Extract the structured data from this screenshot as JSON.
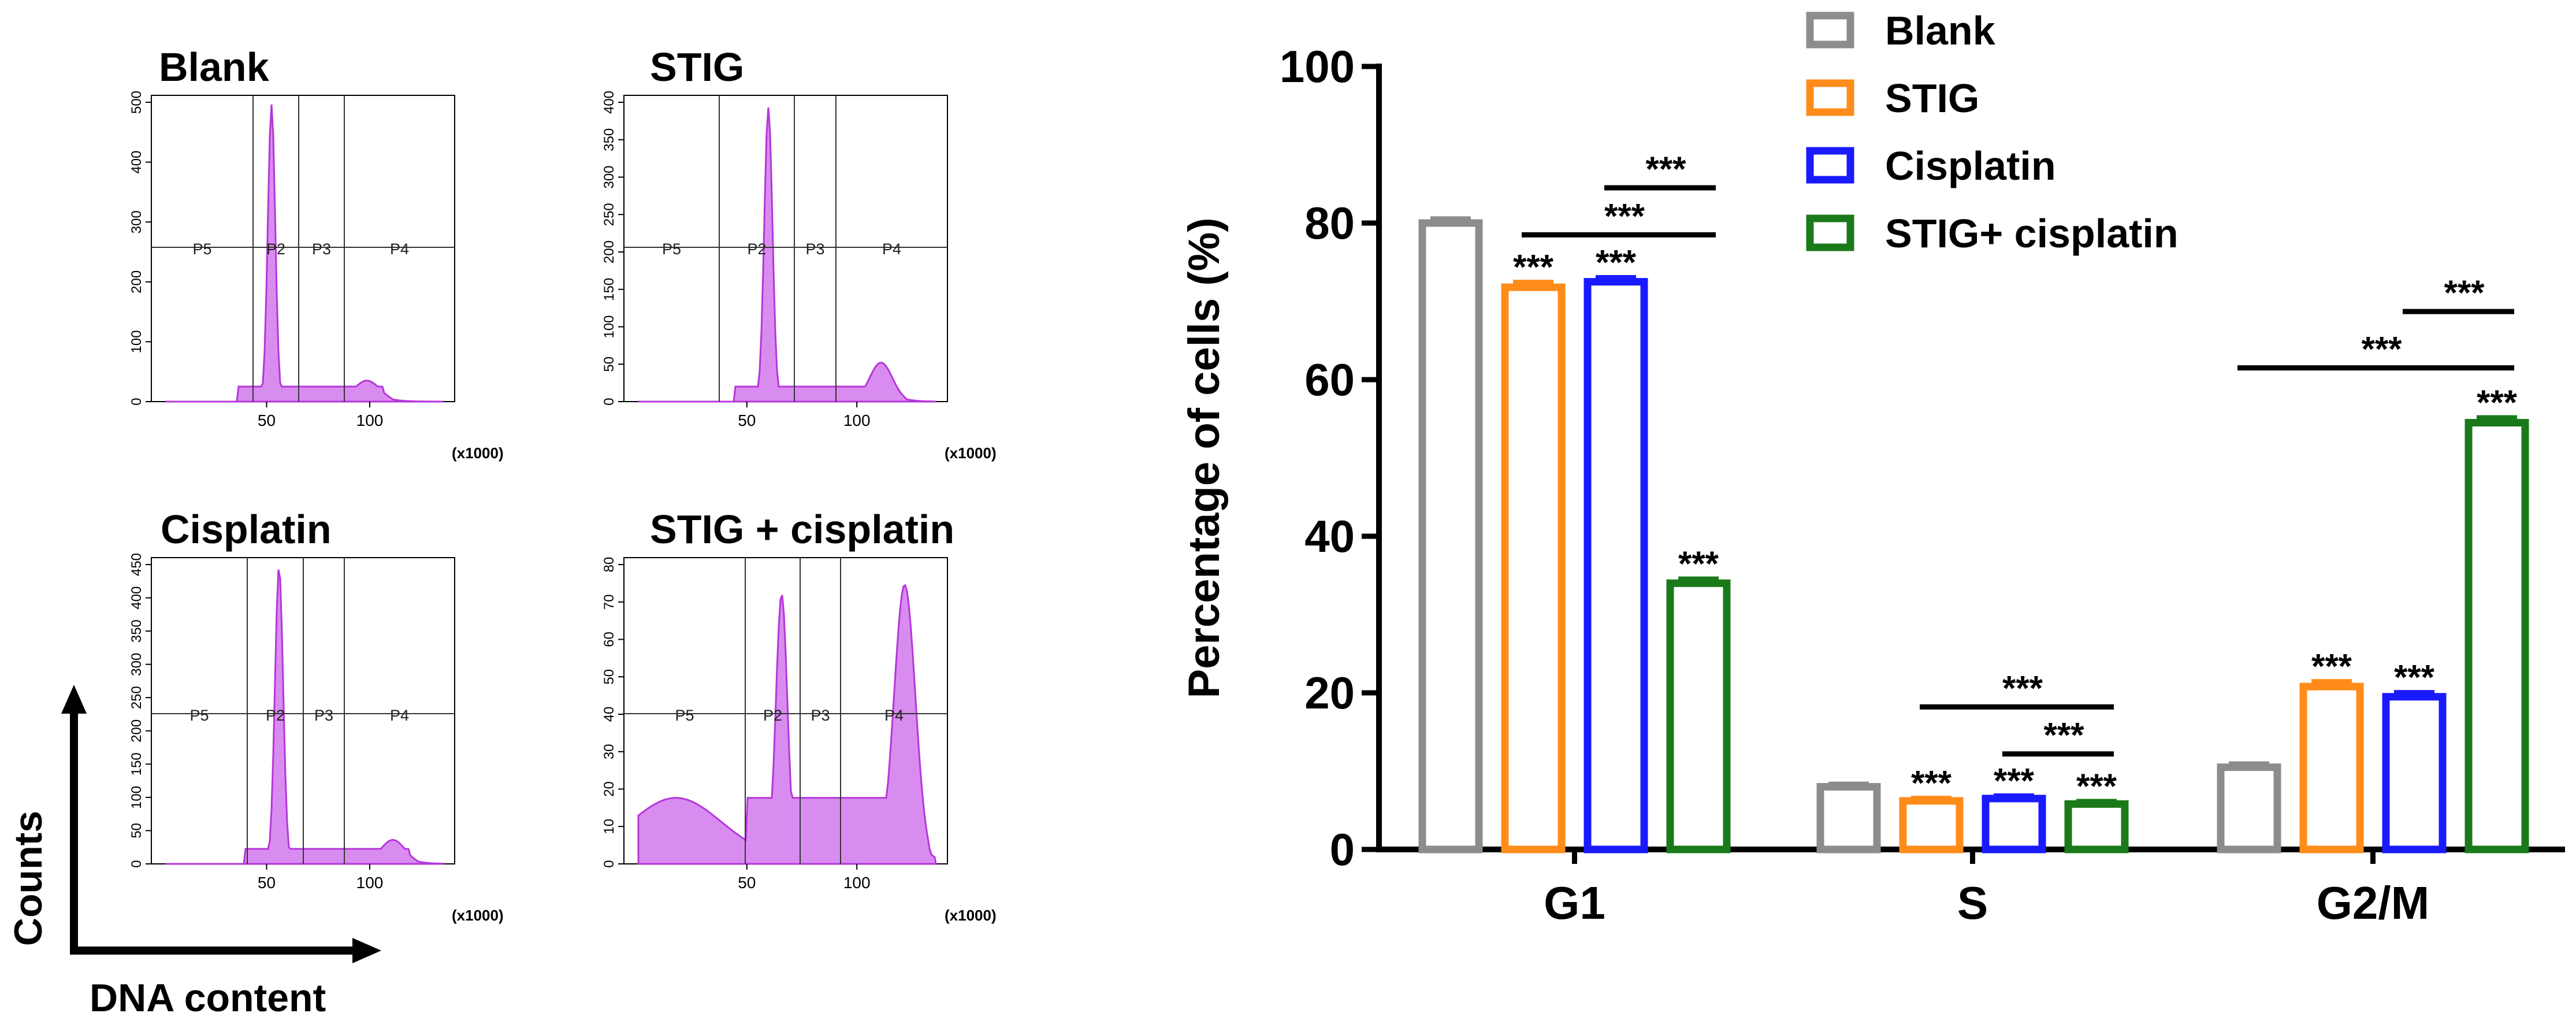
{
  "chart_data": [
    {
      "type": "histogram",
      "title": "Blank",
      "x_ticks": [
        "50",
        "100"
      ],
      "x_unit": "(x1000)",
      "y_ticks": [
        "0",
        "100",
        "200",
        "300",
        "400",
        "500"
      ],
      "gate_labels": [
        "P5",
        "P2",
        "P3",
        "P4"
      ]
    },
    {
      "type": "histogram",
      "title": "STIG",
      "x_ticks": [
        "50",
        "100"
      ],
      "x_unit": "(x1000)",
      "y_ticks": [
        "0",
        "50",
        "100",
        "150",
        "200",
        "250",
        "300",
        "350",
        "400"
      ],
      "gate_labels": [
        "P5",
        "P2",
        "P3",
        "P4"
      ]
    },
    {
      "type": "histogram",
      "title": "Cisplatin",
      "x_ticks": [
        "50",
        "100"
      ],
      "x_unit": "(x1000)",
      "y_ticks": [
        "0",
        "50",
        "100",
        "150",
        "200",
        "250",
        "300",
        "350",
        "400",
        "450"
      ],
      "gate_labels": [
        "P5",
        "P2",
        "P3",
        "P4"
      ]
    },
    {
      "type": "histogram",
      "title": "STIG +  cisplatin",
      "x_ticks": [
        "50",
        "100"
      ],
      "x_unit": "(x1000)",
      "y_ticks": [
        "0",
        "10",
        "20",
        "30",
        "40",
        "50",
        "60",
        "70",
        "80"
      ],
      "gate_labels": [
        "P5",
        "P2",
        "P3",
        "P4"
      ]
    },
    {
      "type": "bar",
      "ylabel": "Percentage of cells (%)",
      "ylim": [
        0,
        100
      ],
      "y_ticks": [
        0,
        20,
        40,
        60,
        80,
        100
      ],
      "categories": [
        "G1",
        "S",
        "G2/M"
      ],
      "series": [
        {
          "name": "Blank",
          "color": "#8c8c8c",
          "values": [
            80.0,
            8.0,
            10.5
          ],
          "errors": [
            0.6,
            0.4,
            0.5
          ]
        },
        {
          "name": "STIG",
          "color": "#ff8c1a",
          "values": [
            71.8,
            6.2,
            20.8
          ],
          "errors": [
            0.7,
            0.4,
            0.7
          ]
        },
        {
          "name": "Cisplatin",
          "color": "#1a1aff",
          "values": [
            72.5,
            6.5,
            19.5
          ],
          "errors": [
            0.6,
            0.4,
            0.6
          ]
        },
        {
          "name": "STIG+ cisplatin",
          "color": "#1a7a1a",
          "values": [
            34.0,
            5.8,
            54.5
          ],
          "errors": [
            0.6,
            0.4,
            0.7
          ]
        }
      ],
      "significance_labels": [
        {
          "category": 0,
          "series": 1,
          "text": "***"
        },
        {
          "category": 0,
          "series": 2,
          "text": "***"
        },
        {
          "category": 0,
          "series": 3,
          "text": "***"
        },
        {
          "category": 1,
          "series": 1,
          "text": "***"
        },
        {
          "category": 1,
          "series": 2,
          "text": "***"
        },
        {
          "category": 1,
          "series": 3,
          "text": "***"
        },
        {
          "category": 2,
          "series": 1,
          "text": "***"
        },
        {
          "category": 2,
          "series": 2,
          "text": "***"
        },
        {
          "category": 2,
          "series": 3,
          "text": "***"
        }
      ],
      "comparison_brackets": [
        {
          "category": 0,
          "from_series": 2,
          "to_series": 3,
          "y": 84.5,
          "text": "***"
        },
        {
          "category": 0,
          "from_series": 1,
          "to_series": 3,
          "y": 78.5,
          "text": "***"
        },
        {
          "category": 1,
          "from_series": 1,
          "to_series": 3,
          "y": 18.2,
          "text": "***"
        },
        {
          "category": 1,
          "from_series": 2,
          "to_series": 3,
          "y": 12.2,
          "text": "***"
        },
        {
          "category": 2,
          "from_series": 2,
          "to_series": 3,
          "y": 68.7,
          "text": "***"
        },
        {
          "category": 2,
          "from_series": 0,
          "to_series": 3,
          "y": 61.5,
          "text": "***"
        }
      ]
    }
  ],
  "axis_labels": {
    "counts": "Counts",
    "dna_content": "DNA content"
  }
}
